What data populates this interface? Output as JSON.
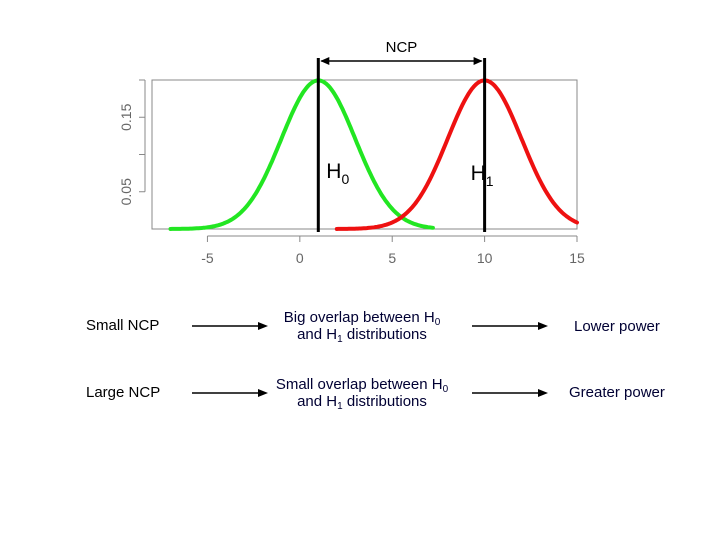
{
  "chart_data": {
    "type": "line",
    "xlim": [
      -8,
      15
    ],
    "ylim": [
      0,
      0.2
    ],
    "x_ticks": [
      -5,
      0,
      5,
      10,
      15
    ],
    "y_ticks": [
      0.05,
      0.15
    ],
    "y_minor_ticks": [
      0.1,
      0.2
    ],
    "grid": false,
    "series": [
      {
        "label": "H0",
        "color": "#22e622",
        "mean": 1,
        "sd": 2,
        "x_range": [
          -7,
          7.2
        ]
      },
      {
        "label": "H1",
        "color": "#ee1111",
        "mean": 10,
        "sd": 2,
        "x_range": [
          2,
          15
        ]
      }
    ],
    "vlines": [
      1,
      10
    ],
    "annotation": {
      "text": "NCP",
      "from": 1,
      "to": 10
    },
    "labels": [
      {
        "main": "H",
        "sub": "0"
      },
      {
        "main": "H",
        "sub": "1"
      }
    ]
  },
  "rows": [
    {
      "left": "Small NCP",
      "mid_line1": "Big overlap between H",
      "mid_sub1": "0",
      "mid_line2a": "and H",
      "mid_sub2": "1",
      "mid_line2b": " distributions",
      "right": "Lower power"
    },
    {
      "left": "Large NCP",
      "mid_line1": "Small overlap between H",
      "mid_sub1": "0",
      "mid_line2a": "and H",
      "mid_sub2": "1",
      "mid_line2b": " distributions",
      "right": "Greater power"
    }
  ]
}
